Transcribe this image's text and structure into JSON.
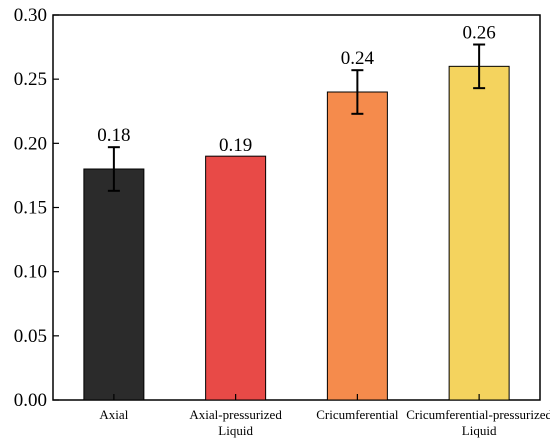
{
  "chart_data": {
    "type": "bar",
    "categories": [
      [
        "Axial"
      ],
      [
        "Axial-pressurized",
        "Liquid"
      ],
      [
        "Cricumferential"
      ],
      [
        "Cricumferential-pressurized",
        "Liquid"
      ]
    ],
    "values": [
      0.18,
      0.19,
      0.24,
      0.26
    ],
    "error": [
      0.017,
      0,
      0.017,
      0.017
    ],
    "data_labels": [
      "0.18",
      "0.19",
      "0.24",
      "0.26"
    ],
    "bar_colors": [
      "#2b2b2b",
      "#e84a47",
      "#f58b4c",
      "#f4d35e"
    ],
    "ylim": [
      0,
      0.3
    ],
    "yticks": [
      "0.00",
      "0.05",
      "0.10",
      "0.15",
      "0.20",
      "0.25",
      "0.30"
    ],
    "title": "",
    "xlabel": "",
    "ylabel": "",
    "grid": false
  }
}
